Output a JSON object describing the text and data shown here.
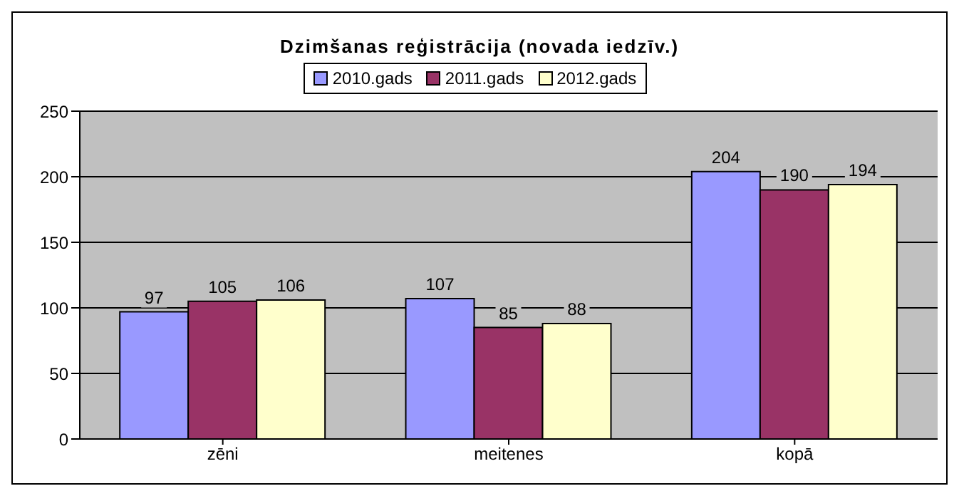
{
  "chart_data": {
    "type": "bar",
    "title": "Dzimšanas reģistrācija  (novada iedzīv.)",
    "categories": [
      "zēni",
      "meitenes",
      "kopā"
    ],
    "series": [
      {
        "name": "2010.gads",
        "color": "#9999ff",
        "values": [
          97,
          107,
          204
        ]
      },
      {
        "name": "2011.gads",
        "color": "#993366",
        "values": [
          105,
          85,
          190
        ]
      },
      {
        "name": "2012.gads",
        "color": "#ffffcc",
        "values": [
          106,
          88,
          194
        ]
      }
    ],
    "ylim": [
      0,
      250
    ],
    "yticks": [
      0,
      50,
      100,
      150,
      200,
      250
    ],
    "grid": "y",
    "legend": "top",
    "data_labels": true
  }
}
